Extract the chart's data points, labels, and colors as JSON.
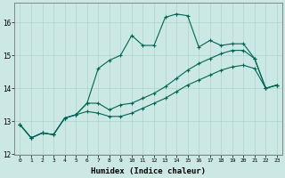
{
  "xlabel": "Humidex (Indice chaleur)",
  "background_color": "#cce8e4",
  "grid_color": "#aad4cc",
  "line_color": "#006655",
  "x_values": [
    0,
    1,
    2,
    3,
    4,
    5,
    6,
    7,
    8,
    9,
    10,
    11,
    12,
    13,
    14,
    15,
    16,
    17,
    18,
    19,
    20,
    21,
    22,
    23
  ],
  "line1": [
    12.9,
    12.5,
    12.65,
    12.6,
    13.1,
    13.2,
    13.55,
    14.6,
    14.85,
    15.0,
    15.6,
    15.3,
    15.3,
    16.15,
    16.25,
    16.2,
    15.25,
    15.45,
    15.3,
    15.35,
    15.35,
    14.9,
    14.0,
    14.1
  ],
  "line2": [
    12.9,
    12.5,
    12.65,
    12.6,
    13.1,
    13.2,
    13.55,
    13.55,
    13.35,
    13.5,
    13.55,
    13.7,
    13.85,
    14.05,
    14.3,
    14.55,
    14.75,
    14.9,
    15.05,
    15.15,
    15.15,
    14.9,
    14.0,
    14.1
  ],
  "line3": [
    12.9,
    12.5,
    12.65,
    12.6,
    13.1,
    13.2,
    13.3,
    13.25,
    13.15,
    13.15,
    13.25,
    13.4,
    13.55,
    13.7,
    13.9,
    14.1,
    14.25,
    14.4,
    14.55,
    14.65,
    14.7,
    14.6,
    14.0,
    14.1
  ],
  "ylim": [
    12,
    16.6
  ],
  "xlim": [
    -0.5,
    23.5
  ],
  "yticks": [
    12,
    13,
    14,
    15,
    16
  ],
  "xticks": [
    0,
    1,
    2,
    3,
    4,
    5,
    6,
    7,
    8,
    9,
    10,
    11,
    12,
    13,
    14,
    15,
    16,
    17,
    18,
    19,
    20,
    21,
    22,
    23
  ]
}
